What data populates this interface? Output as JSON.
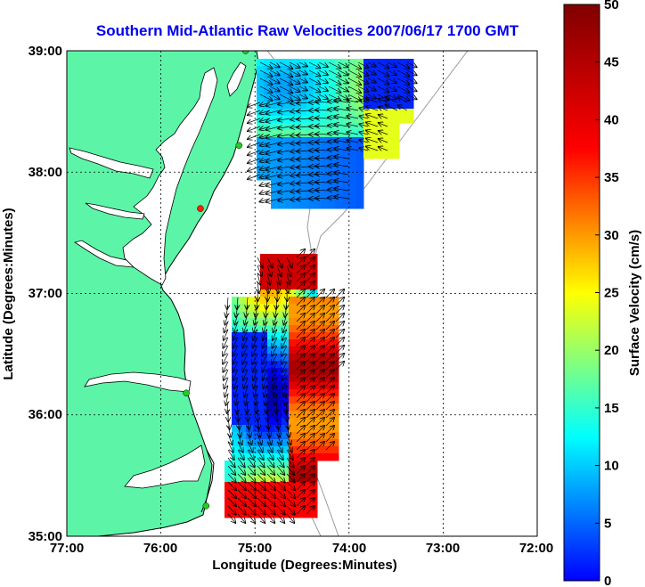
{
  "title": "Southern Mid-Atlantic Raw Velocities 2007/06/17 1700 GMT",
  "x_axis": {
    "label": "Longitude (Degrees:Minutes)",
    "ticks": [
      "77:00",
      "76:00",
      "75:00",
      "74:00",
      "73:00",
      "72:00"
    ]
  },
  "y_axis": {
    "label": "Latitude (Degrees:Minutes)",
    "ticks": [
      "39:00",
      "38:00",
      "37:00",
      "36:00",
      "35:00"
    ]
  },
  "colorbar": {
    "label": "Surface Velocity (cm/s)",
    "ticks": [
      "50",
      "45",
      "40",
      "35",
      "30",
      "25",
      "20",
      "15",
      "10",
      "5",
      "0"
    ],
    "range": [
      0,
      50
    ],
    "colormap": "jet"
  },
  "colors": {
    "land": "#5cf5a8",
    "coastline": "#000000",
    "bathymetry": "#9a9a9a",
    "grid": "#000000",
    "station_active": "#22cc22",
    "station_inactive": "#ff2200"
  },
  "map": {
    "lon_range": [
      -77,
      -72
    ],
    "lat_range": [
      35,
      39
    ],
    "grid": "dotted",
    "stations": [
      {
        "lon": -75.1,
        "lat": 39.0,
        "status": "active"
      },
      {
        "lon": -75.17,
        "lat": 38.22,
        "status": "active"
      },
      {
        "lon": -75.58,
        "lat": 37.7,
        "status": "inactive"
      },
      {
        "lon": -75.73,
        "lat": 36.18,
        "status": "active"
      },
      {
        "lon": -75.52,
        "lat": 35.25,
        "status": "active"
      }
    ]
  }
}
